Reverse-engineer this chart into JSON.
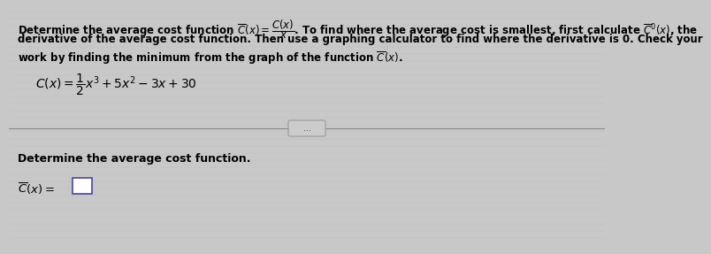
{
  "background_color": "#c8c8c8",
  "panel_color": "#d8d8d8",
  "line1": "Determine the average cost function $\\overline{C}(x) = \\dfrac{C(x)}{x}$. To find where the average cost is smallest, first calculate $\\overline{C}'(x)$, the",
  "line2": "derivative of the average cost function. Then use a graphing calculator to find where the derivative is 0. Check your",
  "line3": "work by finding the minimum from the graph of the function $\\overline{C}(x)$.",
  "equation": "$C(x) = \\dfrac{1}{2}x^3 + 5x^2 - 3x + 30$",
  "ellipsis": "...",
  "bottom_label": "Determine the average cost function.",
  "bottom_eq": "$\\overline{C}(x) = $",
  "text_color": "#000000",
  "divider_color": "#888888",
  "box_edge_color": "#4444aa",
  "box_face_color": "#ffffff",
  "ellipsis_bg": "#cccccc",
  "ellipsis_edge": "#999999",
  "font_size_text": 8.5,
  "font_size_eq": 10.0,
  "font_size_bottom": 9.0
}
